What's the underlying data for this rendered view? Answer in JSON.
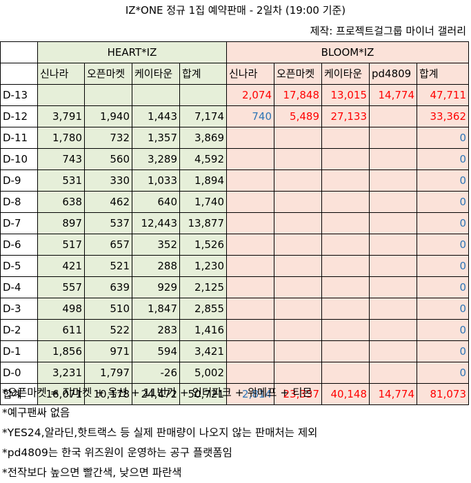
{
  "title": "IZ*ONE 정규 1집 예약판매 - 2일차 (19:00 기준)",
  "credit": "제작: 프로젝트걸그룹 마이너 갤러리",
  "groups": {
    "heart": "HEART*IZ",
    "bloom": "BLOOM*IZ"
  },
  "heart_columns": [
    "신나라",
    "오픈마켓",
    "케이타운",
    "합계"
  ],
  "bloom_columns": [
    "신나라",
    "오픈마켓",
    "케이타운",
    "pd4809",
    "합계"
  ],
  "colors": {
    "green_bg": "#e6efd9",
    "pink_bg": "#fbe2d9",
    "higher": "#ff0000",
    "lower": "#2e75b6"
  },
  "rows": [
    {
      "day": "D-13",
      "heart": [
        "",
        "",
        "",
        ""
      ],
      "bloom": [
        "2,074",
        "17,848",
        "13,015",
        "14,774",
        "47,711"
      ],
      "bloom_colors": [
        "red",
        "red",
        "red",
        "red",
        "red"
      ]
    },
    {
      "day": "D-12",
      "heart": [
        "3,791",
        "1,940",
        "1,443",
        "7,174"
      ],
      "bloom": [
        "740",
        "5,489",
        "27,133",
        "",
        "33,362"
      ],
      "bloom_colors": [
        "blue",
        "red",
        "red",
        "",
        "red"
      ]
    },
    {
      "day": "D-11",
      "heart": [
        "1,780",
        "732",
        "1,357",
        "3,869"
      ],
      "bloom": [
        "",
        "",
        "",
        "",
        "0"
      ],
      "bloom_colors": [
        "",
        "",
        "",
        "",
        "blue"
      ]
    },
    {
      "day": "D-10",
      "heart": [
        "743",
        "560",
        "3,289",
        "4,592"
      ],
      "bloom": [
        "",
        "",
        "",
        "",
        "0"
      ],
      "bloom_colors": [
        "",
        "",
        "",
        "",
        "blue"
      ]
    },
    {
      "day": "D-9",
      "heart": [
        "531",
        "330",
        "1,033",
        "1,894"
      ],
      "bloom": [
        "",
        "",
        "",
        "",
        "0"
      ],
      "bloom_colors": [
        "",
        "",
        "",
        "",
        "blue"
      ]
    },
    {
      "day": "D-8",
      "heart": [
        "638",
        "462",
        "640",
        "1,740"
      ],
      "bloom": [
        "",
        "",
        "",
        "",
        "0"
      ],
      "bloom_colors": [
        "",
        "",
        "",
        "",
        "blue"
      ]
    },
    {
      "day": "D-7",
      "heart": [
        "897",
        "537",
        "12,443",
        "13,877"
      ],
      "bloom": [
        "",
        "",
        "",
        "",
        "0"
      ],
      "bloom_colors": [
        "",
        "",
        "",
        "",
        "blue"
      ]
    },
    {
      "day": "D-6",
      "heart": [
        "517",
        "657",
        "352",
        "1,526"
      ],
      "bloom": [
        "",
        "",
        "",
        "",
        "0"
      ],
      "bloom_colors": [
        "",
        "",
        "",
        "",
        "blue"
      ]
    },
    {
      "day": "D-5",
      "heart": [
        "421",
        "521",
        "288",
        "1,230"
      ],
      "bloom": [
        "",
        "",
        "",
        "",
        "0"
      ],
      "bloom_colors": [
        "",
        "",
        "",
        "",
        "blue"
      ]
    },
    {
      "day": "D-4",
      "heart": [
        "557",
        "639",
        "929",
        "2,125"
      ],
      "bloom": [
        "",
        "",
        "",
        "",
        "0"
      ],
      "bloom_colors": [
        "",
        "",
        "",
        "",
        "blue"
      ]
    },
    {
      "day": "D-3",
      "heart": [
        "498",
        "510",
        "1,847",
        "2,855"
      ],
      "bloom": [
        "",
        "",
        "",
        "",
        "0"
      ],
      "bloom_colors": [
        "",
        "",
        "",
        "",
        "blue"
      ]
    },
    {
      "day": "D-2",
      "heart": [
        "611",
        "522",
        "283",
        "1,416"
      ],
      "bloom": [
        "",
        "",
        "",
        "",
        "0"
      ],
      "bloom_colors": [
        "",
        "",
        "",
        "",
        "blue"
      ]
    },
    {
      "day": "D-1",
      "heart": [
        "1,856",
        "971",
        "594",
        "3,421"
      ],
      "bloom": [
        "",
        "",
        "",
        "",
        "0"
      ],
      "bloom_colors": [
        "",
        "",
        "",
        "",
        "blue"
      ]
    },
    {
      "day": "D-0",
      "heart": [
        "3,231",
        "1,797",
        "-26",
        "5,002"
      ],
      "bloom": [
        "",
        "",
        "",
        "",
        "0"
      ],
      "bloom_colors": [
        "",
        "",
        "",
        "",
        "blue"
      ]
    }
  ],
  "total": {
    "label": "합계",
    "heart": [
      "16,071",
      "10,178",
      "24,472",
      "50,721"
    ],
    "bloom": [
      "2,814",
      "23,337",
      "40,148",
      "14,774",
      "81,073"
    ],
    "bloom_colors": [
      "blue",
      "red",
      "red",
      "red",
      "red"
    ]
  },
  "notes": [
    "*오픈마켓 = 지마켓 + 옥션 + 11번가 + 인터파크 + 위메프 + 티몬",
    "*예구팬싸 없음",
    "*YES24,알라딘,핫트랙스 등 실제 판매량이 나오지 않는 판매처는 제외",
    "*pd4809는 한국 위즈원이 운영하는 공구 플랫폼임",
    "*전작보다 높으면 빨간색, 낮으면 파란색"
  ]
}
